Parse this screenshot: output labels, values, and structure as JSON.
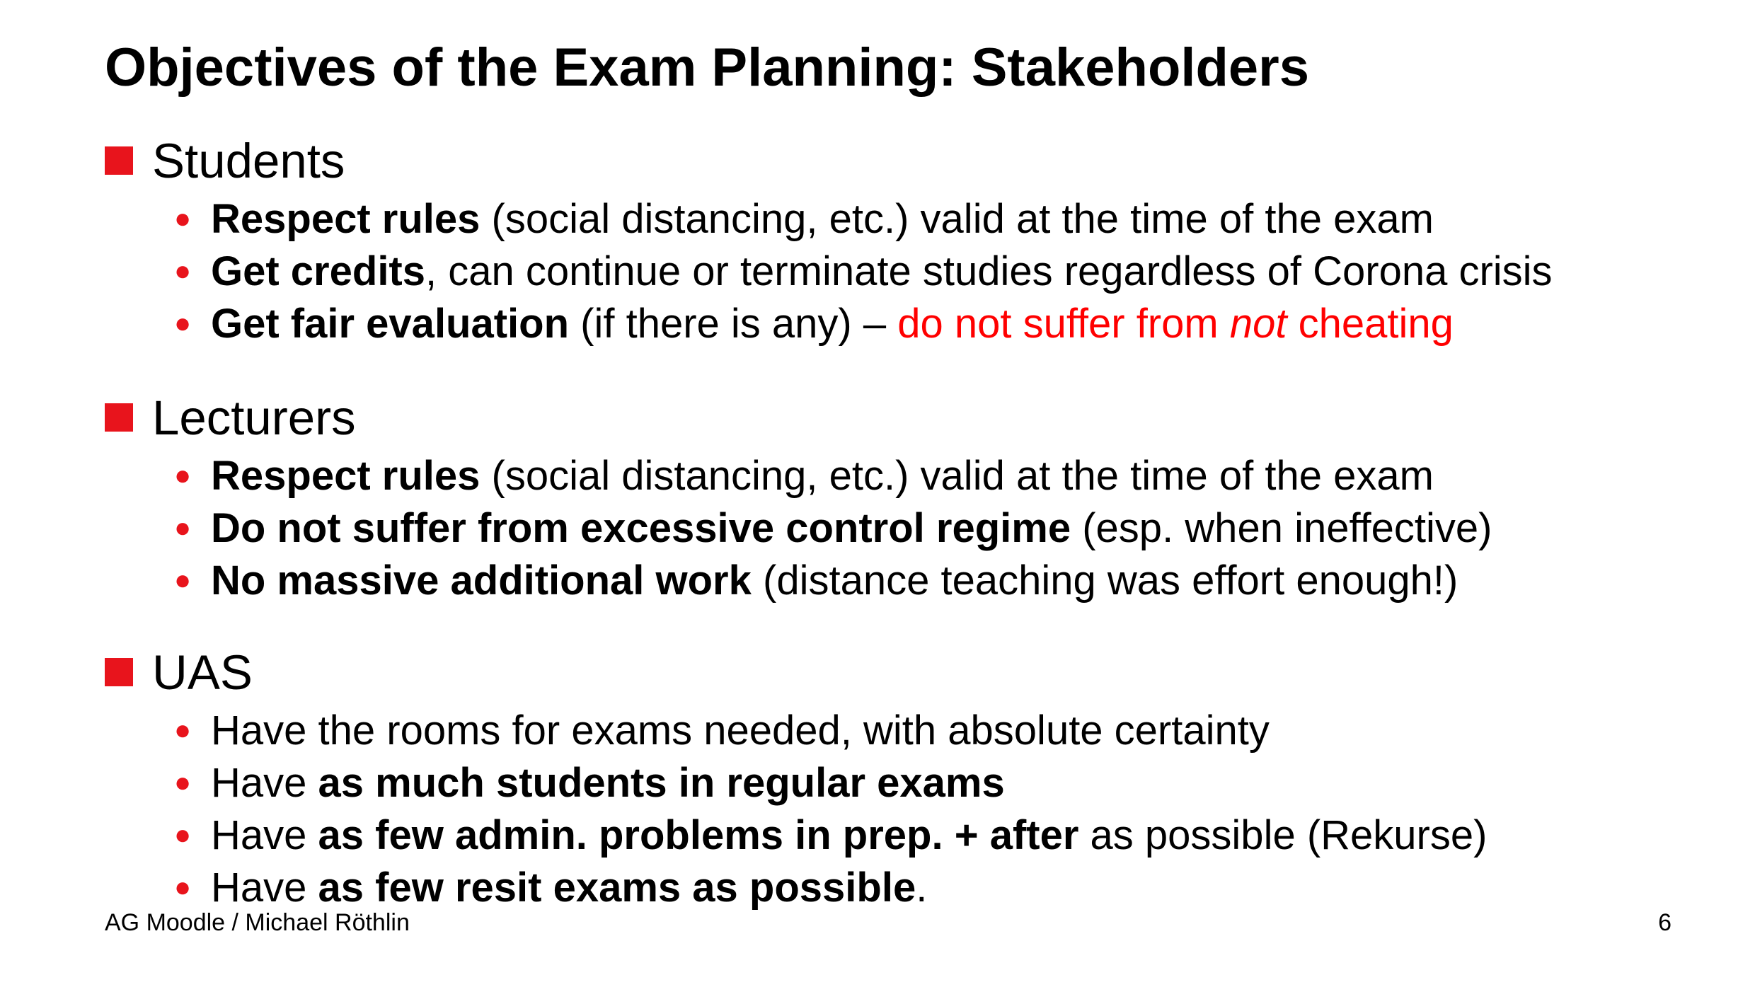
{
  "title": "Objectives of the Exam Planning: Stakeholders",
  "colors": {
    "accent": "#e8141c",
    "highlight": "#ff0000",
    "text": "#000000"
  },
  "sections": [
    {
      "heading": "Students",
      "items": [
        {
          "bold": "Respect rules",
          "rest": " (social distancing, etc.) valid at the time of the exam"
        },
        {
          "bold": "Get credits",
          "rest": ", can continue or terminate studies regardless of Corona crisis"
        },
        {
          "bold": "Get fair evaluation",
          "rest": " (if there is any) – ",
          "red1": "do not suffer from ",
          "red_italic": "not",
          "red2": " cheating"
        }
      ]
    },
    {
      "heading": "Lecturers",
      "items": [
        {
          "bold": "Respect rules",
          "rest": " (social distancing, etc.) valid at the time of the exam"
        },
        {
          "bold": "Do not suffer from excessive control regime",
          "rest": " (esp. when ineffective)"
        },
        {
          "bold": "No massive additional work",
          "rest": " (distance teaching was effort enough!)"
        }
      ]
    },
    {
      "heading": "UAS",
      "items": [
        {
          "pre": "Have the rooms for exams needed, with absolute certainty"
        },
        {
          "pre": "Have ",
          "bold": "as much students in regular exams"
        },
        {
          "pre": "Have ",
          "bold": "as few admin. problems in prep. + after",
          "rest": " as possible (Rekurse)"
        },
        {
          "pre": "Have ",
          "bold": "as few resit exams as possible",
          "rest": "."
        }
      ]
    }
  ],
  "footer": {
    "left": "AG Moodle / Michael Röthlin",
    "page_number": "6"
  }
}
